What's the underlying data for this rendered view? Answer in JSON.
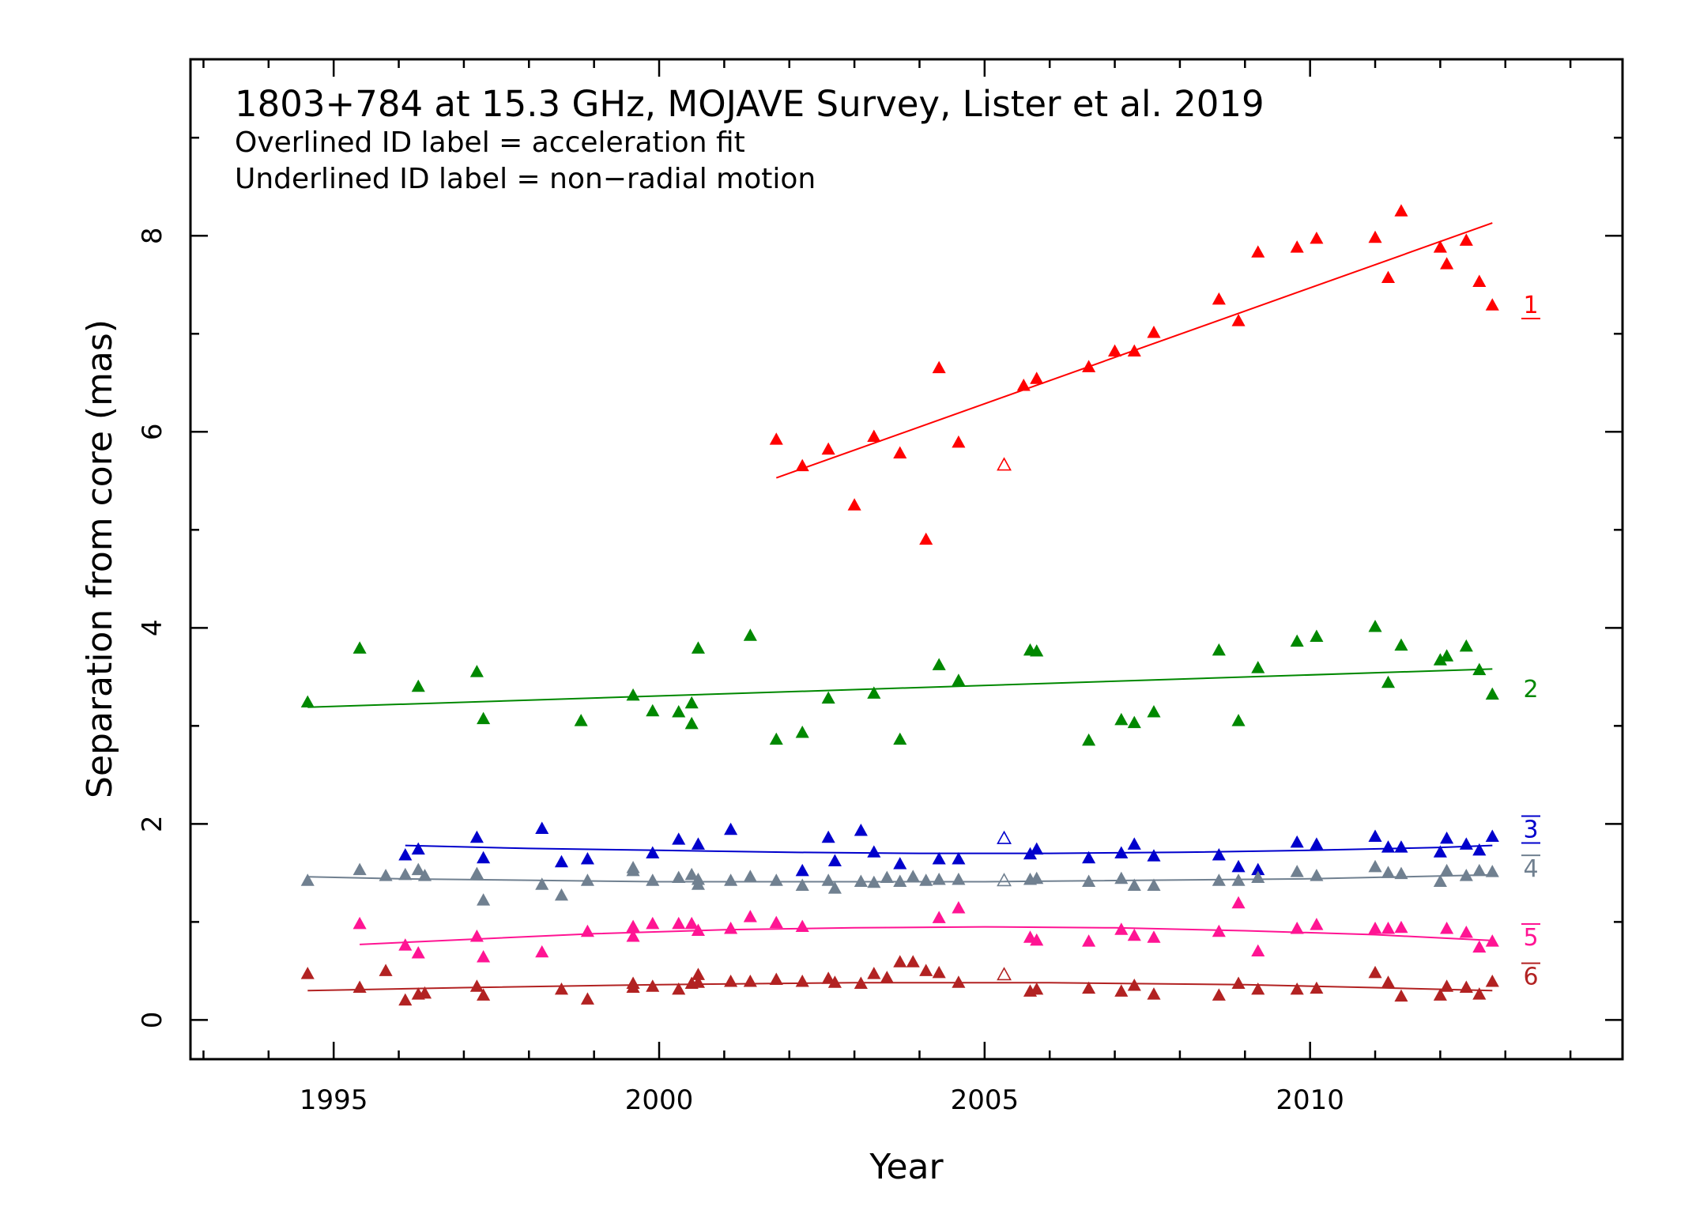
{
  "chart_data": {
    "type": "scatter",
    "annotations": {
      "title": "1803+784 at 15.3 GHz, MOJAVE Survey, Lister et al. 2019",
      "line1": "Overlined ID label = acceleration fit",
      "line2": "Underlined ID label = non−radial motion"
    },
    "xlabel": "Year",
    "ylabel": "Separation from core (mas)",
    "xlim": [
      1992.8,
      2014.8
    ],
    "ylim": [
      -0.4,
      9.8
    ],
    "xticks": [
      1995,
      2000,
      2005,
      2010
    ],
    "yticks": [
      0,
      2,
      4,
      6,
      8
    ],
    "grid": false,
    "series": [
      {
        "name": "1",
        "label_style": "underline",
        "color": "#ff0000",
        "label_y": 7.3,
        "points": [
          [
            2001.8,
            5.92
          ],
          [
            2002.2,
            5.65
          ],
          [
            2002.6,
            5.82
          ],
          [
            2003.0,
            5.25
          ],
          [
            2003.3,
            5.95
          ],
          [
            2003.7,
            5.78
          ],
          [
            2004.1,
            4.9
          ],
          [
            2004.3,
            6.65
          ],
          [
            2004.6,
            5.89
          ],
          [
            2005.6,
            6.47
          ],
          [
            2005.8,
            6.54
          ],
          [
            2006.6,
            6.66
          ],
          [
            2007.0,
            6.82
          ],
          [
            2007.3,
            6.82
          ],
          [
            2007.6,
            7.01
          ],
          [
            2008.6,
            7.35
          ],
          [
            2008.9,
            7.13
          ],
          [
            2009.2,
            7.83
          ],
          [
            2009.8,
            7.88
          ],
          [
            2010.1,
            7.97
          ],
          [
            2011.0,
            7.98
          ],
          [
            2011.2,
            7.57
          ],
          [
            2011.4,
            8.25
          ],
          [
            2012.0,
            7.88
          ],
          [
            2012.1,
            7.71
          ],
          [
            2012.4,
            7.95
          ],
          [
            2012.6,
            7.53
          ],
          [
            2012.8,
            7.29
          ]
        ],
        "open_points": [
          [
            2005.3,
            5.66
          ]
        ],
        "fit": [
          [
            2001.8,
            5.53
          ],
          [
            2012.8,
            8.13
          ]
        ]
      },
      {
        "name": "2",
        "label_style": "none",
        "color": "#008800",
        "label_y": 3.38,
        "points": [
          [
            1994.6,
            3.24
          ],
          [
            1995.4,
            3.79
          ],
          [
            1996.3,
            3.4
          ],
          [
            1997.2,
            3.55
          ],
          [
            1997.3,
            3.07
          ],
          [
            1998.8,
            3.05
          ],
          [
            1999.6,
            3.31
          ],
          [
            1999.9,
            3.15
          ],
          [
            2000.3,
            3.14
          ],
          [
            2000.5,
            3.02
          ],
          [
            2000.5,
            3.23
          ],
          [
            2000.6,
            3.79
          ],
          [
            2001.4,
            3.92
          ],
          [
            2001.8,
            2.86
          ],
          [
            2002.2,
            2.93
          ],
          [
            2002.6,
            3.28
          ],
          [
            2003.3,
            3.33
          ],
          [
            2003.7,
            2.86
          ],
          [
            2004.3,
            3.62
          ],
          [
            2004.6,
            3.46
          ],
          [
            2005.7,
            3.77
          ],
          [
            2005.8,
            3.76
          ],
          [
            2006.6,
            2.85
          ],
          [
            2007.1,
            3.06
          ],
          [
            2007.3,
            3.03
          ],
          [
            2007.6,
            3.14
          ],
          [
            2008.6,
            3.77
          ],
          [
            2008.9,
            3.05
          ],
          [
            2009.2,
            3.59
          ],
          [
            2009.8,
            3.86
          ],
          [
            2010.1,
            3.91
          ],
          [
            2011.0,
            4.01
          ],
          [
            2011.2,
            3.44
          ],
          [
            2011.4,
            3.82
          ],
          [
            2012.0,
            3.67
          ],
          [
            2012.1,
            3.71
          ],
          [
            2012.4,
            3.81
          ],
          [
            2012.6,
            3.57
          ],
          [
            2012.8,
            3.32
          ]
        ],
        "open_points": [],
        "fit": [
          [
            1994.6,
            3.19
          ],
          [
            2012.8,
            3.58
          ]
        ]
      },
      {
        "name": "3",
        "label_style": "both",
        "color": "#0000cc",
        "label_y": 1.95,
        "points": [
          [
            1996.1,
            1.68
          ],
          [
            1996.3,
            1.74
          ],
          [
            1997.2,
            1.86
          ],
          [
            1997.3,
            1.65
          ],
          [
            1998.2,
            1.95
          ],
          [
            1998.5,
            1.61
          ],
          [
            1998.9,
            1.64
          ],
          [
            1999.9,
            1.7
          ],
          [
            2000.3,
            1.84
          ],
          [
            2000.6,
            1.79
          ],
          [
            2001.1,
            1.94
          ],
          [
            2002.2,
            1.52
          ],
          [
            2002.6,
            1.86
          ],
          [
            2002.7,
            1.62
          ],
          [
            2003.1,
            1.93
          ],
          [
            2003.3,
            1.71
          ],
          [
            2003.7,
            1.59
          ],
          [
            2004.3,
            1.64
          ],
          [
            2004.6,
            1.64
          ],
          [
            2005.7,
            1.69
          ],
          [
            2005.8,
            1.74
          ],
          [
            2006.6,
            1.65
          ],
          [
            2007.1,
            1.7
          ],
          [
            2007.3,
            1.79
          ],
          [
            2007.6,
            1.67
          ],
          [
            2008.6,
            1.68
          ],
          [
            2008.9,
            1.56
          ],
          [
            2009.2,
            1.53
          ],
          [
            2009.8,
            1.81
          ],
          [
            2010.1,
            1.79
          ],
          [
            2011.0,
            1.87
          ],
          [
            2011.2,
            1.76
          ],
          [
            2011.4,
            1.76
          ],
          [
            2012.0,
            1.71
          ],
          [
            2012.1,
            1.85
          ],
          [
            2012.4,
            1.79
          ],
          [
            2012.6,
            1.73
          ],
          [
            2012.8,
            1.87
          ]
        ],
        "open_points": [
          [
            2005.3,
            1.85
          ]
        ],
        "fit": [
          [
            1996.1,
            1.78
          ],
          [
            1998.0,
            1.75
          ],
          [
            2000.0,
            1.73
          ],
          [
            2002.0,
            1.71
          ],
          [
            2004.0,
            1.7
          ],
          [
            2006.0,
            1.7
          ],
          [
            2008.0,
            1.71
          ],
          [
            2010.0,
            1.73
          ],
          [
            2012.0,
            1.76
          ],
          [
            2012.8,
            1.78
          ]
        ]
      },
      {
        "name": "4",
        "label_style": "overline",
        "color": "#708090",
        "label_y": 1.55,
        "points": [
          [
            1994.6,
            1.42
          ],
          [
            1995.4,
            1.53
          ],
          [
            1995.8,
            1.47
          ],
          [
            1996.1,
            1.48
          ],
          [
            1996.3,
            1.53
          ],
          [
            1996.4,
            1.47
          ],
          [
            1997.2,
            1.49
          ],
          [
            1997.3,
            1.22
          ],
          [
            1998.2,
            1.38
          ],
          [
            1998.5,
            1.27
          ],
          [
            1998.9,
            1.42
          ],
          [
            1999.6,
            1.55
          ],
          [
            1999.6,
            1.52
          ],
          [
            1999.9,
            1.42
          ],
          [
            2000.3,
            1.45
          ],
          [
            2000.5,
            1.48
          ],
          [
            2000.6,
            1.38
          ],
          [
            2000.6,
            1.43
          ],
          [
            2001.1,
            1.42
          ],
          [
            2001.4,
            1.46
          ],
          [
            2001.8,
            1.42
          ],
          [
            2002.2,
            1.37
          ],
          [
            2002.6,
            1.42
          ],
          [
            2002.7,
            1.34
          ],
          [
            2003.1,
            1.41
          ],
          [
            2003.3,
            1.4
          ],
          [
            2003.5,
            1.45
          ],
          [
            2003.7,
            1.41
          ],
          [
            2003.9,
            1.46
          ],
          [
            2004.1,
            1.42
          ],
          [
            2004.3,
            1.43
          ],
          [
            2004.6,
            1.43
          ],
          [
            2005.7,
            1.43
          ],
          [
            2005.8,
            1.44
          ],
          [
            2006.6,
            1.41
          ],
          [
            2007.1,
            1.44
          ],
          [
            2007.3,
            1.37
          ],
          [
            2007.6,
            1.37
          ],
          [
            2008.6,
            1.42
          ],
          [
            2008.9,
            1.42
          ],
          [
            2009.2,
            1.45
          ],
          [
            2009.8,
            1.51
          ],
          [
            2010.1,
            1.47
          ],
          [
            2011.0,
            1.56
          ],
          [
            2011.2,
            1.5
          ],
          [
            2011.4,
            1.49
          ],
          [
            2012.0,
            1.41
          ],
          [
            2012.1,
            1.52
          ],
          [
            2012.4,
            1.47
          ],
          [
            2012.6,
            1.52
          ],
          [
            2012.8,
            1.51
          ]
        ],
        "open_points": [
          [
            2005.3,
            1.42
          ]
        ],
        "fit": [
          [
            1994.6,
            1.46
          ],
          [
            1996.0,
            1.44
          ],
          [
            2000.0,
            1.41
          ],
          [
            2005.0,
            1.41
          ],
          [
            2010.0,
            1.44
          ],
          [
            2012.8,
            1.48
          ]
        ]
      },
      {
        "name": "5",
        "label_style": "overline",
        "color": "#ff1493",
        "label_y": 0.85,
        "points": [
          [
            1995.4,
            0.98
          ],
          [
            1996.1,
            0.76
          ],
          [
            1996.3,
            0.68
          ],
          [
            1997.2,
            0.85
          ],
          [
            1997.3,
            0.64
          ],
          [
            1998.2,
            0.69
          ],
          [
            1998.9,
            0.9
          ],
          [
            1999.6,
            0.95
          ],
          [
            1999.6,
            0.85
          ],
          [
            1999.9,
            0.98
          ],
          [
            2000.3,
            0.98
          ],
          [
            2000.5,
            0.98
          ],
          [
            2000.6,
            0.91
          ],
          [
            2001.1,
            0.93
          ],
          [
            2001.4,
            1.05
          ],
          [
            2001.8,
            0.99
          ],
          [
            2002.2,
            0.95
          ],
          [
            2004.3,
            1.04
          ],
          [
            2004.6,
            1.14
          ],
          [
            2005.7,
            0.84
          ],
          [
            2005.8,
            0.81
          ],
          [
            2006.6,
            0.8
          ],
          [
            2007.1,
            0.92
          ],
          [
            2007.3,
            0.86
          ],
          [
            2007.6,
            0.84
          ],
          [
            2008.6,
            0.9
          ],
          [
            2008.9,
            1.19
          ],
          [
            2009.2,
            0.7
          ],
          [
            2009.8,
            0.93
          ],
          [
            2010.1,
            0.97
          ],
          [
            2011.0,
            0.93
          ],
          [
            2011.2,
            0.93
          ],
          [
            2011.4,
            0.94
          ],
          [
            2012.1,
            0.93
          ],
          [
            2012.4,
            0.89
          ],
          [
            2012.6,
            0.74
          ],
          [
            2012.8,
            0.8
          ]
        ],
        "open_points": [],
        "fit": [
          [
            1995.4,
            0.77
          ],
          [
            1997.0,
            0.82
          ],
          [
            1999.0,
            0.88
          ],
          [
            2001.0,
            0.92
          ],
          [
            2003.0,
            0.94
          ],
          [
            2005.0,
            0.95
          ],
          [
            2007.0,
            0.94
          ],
          [
            2009.0,
            0.91
          ],
          [
            2011.0,
            0.87
          ],
          [
            2012.8,
            0.81
          ]
        ]
      },
      {
        "name": "6",
        "label_style": "overline",
        "color": "#b22222",
        "label_y": 0.45,
        "points": [
          [
            1994.6,
            0.47
          ],
          [
            1995.4,
            0.33
          ],
          [
            1995.8,
            0.5
          ],
          [
            1996.1,
            0.2
          ],
          [
            1996.3,
            0.26
          ],
          [
            1996.4,
            0.27
          ],
          [
            1997.2,
            0.34
          ],
          [
            1997.3,
            0.25
          ],
          [
            1998.5,
            0.31
          ],
          [
            1998.9,
            0.21
          ],
          [
            1999.6,
            0.37
          ],
          [
            1999.6,
            0.33
          ],
          [
            1999.9,
            0.34
          ],
          [
            2000.3,
            0.31
          ],
          [
            2000.5,
            0.37
          ],
          [
            2000.6,
            0.46
          ],
          [
            2000.6,
            0.38
          ],
          [
            2001.1,
            0.39
          ],
          [
            2001.4,
            0.39
          ],
          [
            2001.8,
            0.41
          ],
          [
            2002.2,
            0.39
          ],
          [
            2002.6,
            0.42
          ],
          [
            2002.7,
            0.38
          ],
          [
            2003.1,
            0.37
          ],
          [
            2003.3,
            0.47
          ],
          [
            2003.5,
            0.43
          ],
          [
            2003.7,
            0.59
          ],
          [
            2003.9,
            0.59
          ],
          [
            2004.1,
            0.5
          ],
          [
            2004.3,
            0.48
          ],
          [
            2004.6,
            0.38
          ],
          [
            2005.7,
            0.29
          ],
          [
            2005.8,
            0.31
          ],
          [
            2006.6,
            0.32
          ],
          [
            2007.1,
            0.29
          ],
          [
            2007.3,
            0.35
          ],
          [
            2007.6,
            0.26
          ],
          [
            2008.6,
            0.25
          ],
          [
            2008.9,
            0.37
          ],
          [
            2009.2,
            0.31
          ],
          [
            2009.8,
            0.31
          ],
          [
            2010.1,
            0.32
          ],
          [
            2011.0,
            0.48
          ],
          [
            2011.2,
            0.38
          ],
          [
            2011.4,
            0.24
          ],
          [
            2012.0,
            0.25
          ],
          [
            2012.1,
            0.34
          ],
          [
            2012.4,
            0.33
          ],
          [
            2012.6,
            0.26
          ],
          [
            2012.8,
            0.39
          ]
        ],
        "open_points": [
          [
            2005.3,
            0.46
          ]
        ],
        "fit": [
          [
            1994.6,
            0.3
          ],
          [
            1997.0,
            0.33
          ],
          [
            2000.0,
            0.36
          ],
          [
            2003.0,
            0.38
          ],
          [
            2006.0,
            0.38
          ],
          [
            2009.0,
            0.36
          ],
          [
            2011.0,
            0.33
          ],
          [
            2012.8,
            0.3
          ]
        ]
      }
    ]
  }
}
